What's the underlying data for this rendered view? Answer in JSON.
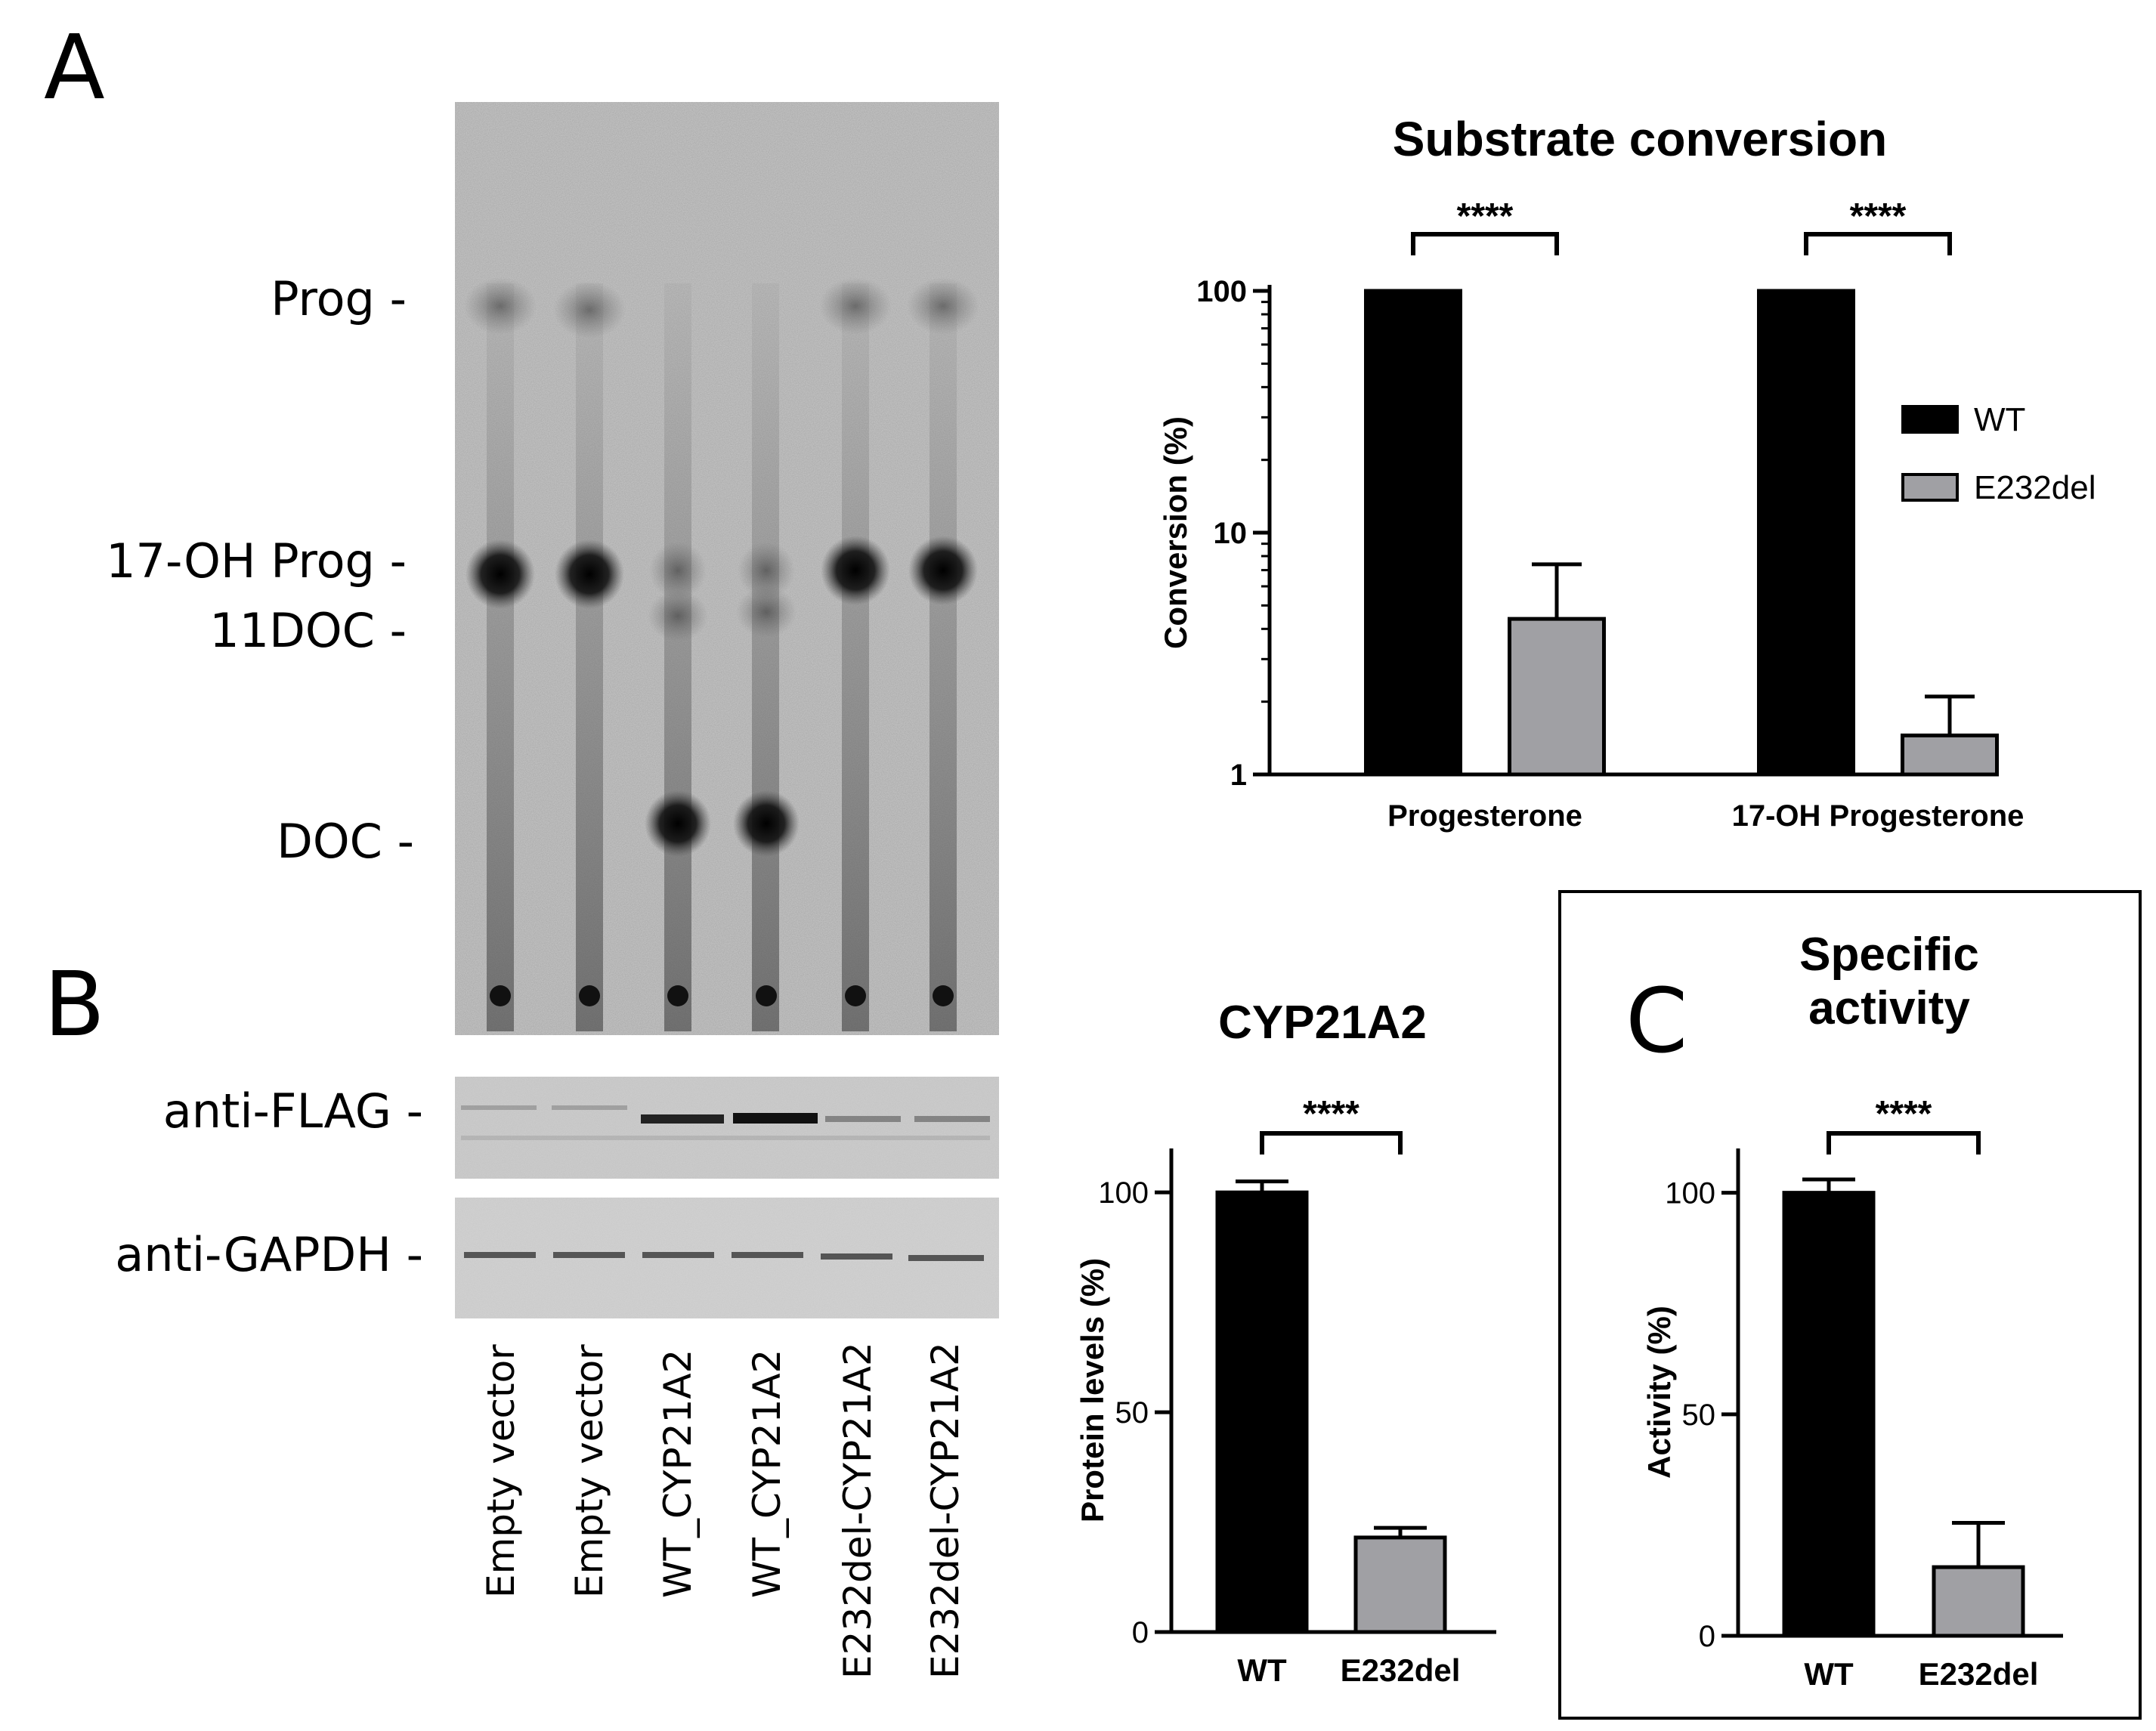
{
  "panel_letters": {
    "a": "A",
    "b": "B",
    "c": "C"
  },
  "tlc": {
    "band_labels": [
      "Prog -",
      "17-OH Prog -",
      "11DOC -",
      "DOC -"
    ]
  },
  "western": {
    "labels": [
      "anti-FLAG -",
      "anti-GAPDH -"
    ],
    "lanes": [
      "Empty vector",
      "Empty vector",
      "WT_CYP21A2",
      "WT_CYP21A2",
      "E232del-CYP21A2",
      "E232del-CYP21A2"
    ]
  },
  "colors": {
    "wt": "#000000",
    "e232del": "#a0a0a4"
  },
  "chart_data": [
    {
      "id": "substrate",
      "type": "bar",
      "title": "Substrate conversion",
      "xlabel": "",
      "ylabel": "Conversion (%)",
      "yscale": "log",
      "ylim": [
        1,
        100
      ],
      "yticks": [
        "1",
        "10",
        "100"
      ],
      "categories": [
        "Progesterone",
        "17-OH Progesterone"
      ],
      "series": [
        {
          "name": "WT",
          "values": [
            100,
            100
          ],
          "errors": [
            0,
            0
          ]
        },
        {
          "name": "E232del",
          "values": [
            4.4,
            1.45
          ],
          "errors": [
            3.0,
            0.65
          ]
        }
      ],
      "significance": [
        "****",
        "****"
      ],
      "legend": "right"
    },
    {
      "id": "cyp21a2",
      "type": "bar",
      "title": "CYP21A2",
      "xlabel": "",
      "ylabel": "Protein levels (%)",
      "ylim": [
        0,
        110
      ],
      "yticks": [
        "0",
        "50",
        "100"
      ],
      "categories": [
        "WT",
        "E232del"
      ],
      "values": [
        100,
        21.5
      ],
      "errors": [
        2.5,
        2.2
      ],
      "significance": "****"
    },
    {
      "id": "activity",
      "type": "bar",
      "title": "Specific activity",
      "xlabel": "",
      "ylabel": "Activity (%)",
      "ylim": [
        0,
        110
      ],
      "yticks": [
        "0",
        "50",
        "100"
      ],
      "categories": [
        "WT",
        "E232del"
      ],
      "values": [
        100,
        15.5
      ],
      "errors": [
        3.0,
        10.0
      ],
      "significance": "****"
    }
  ]
}
